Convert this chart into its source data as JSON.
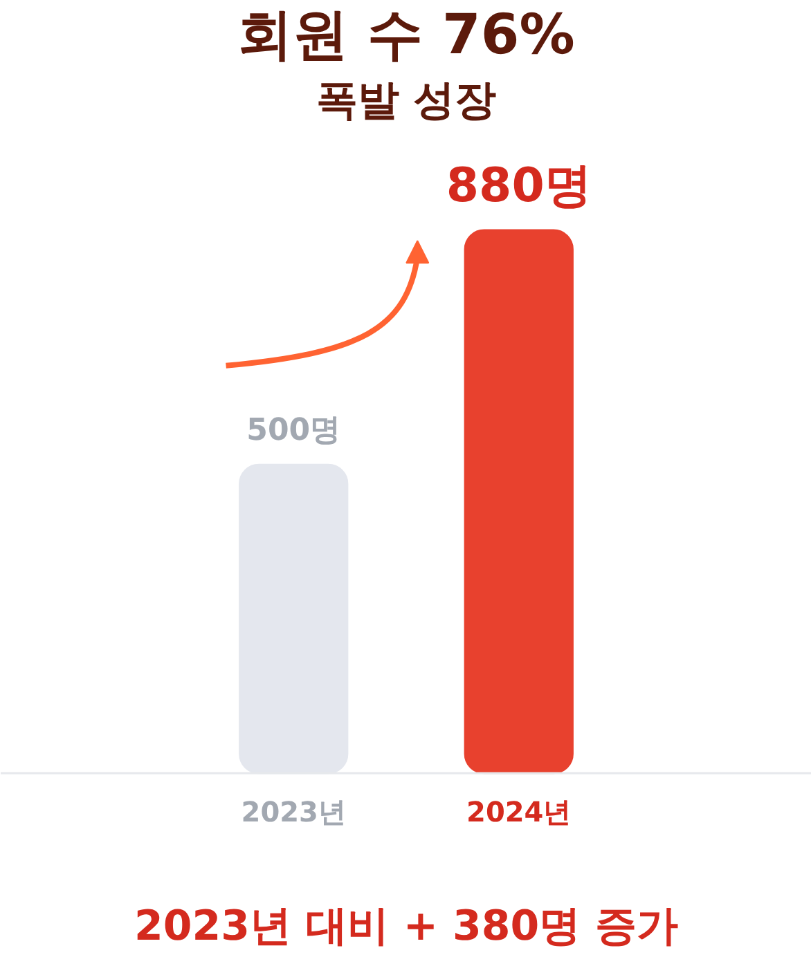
{
  "chart_data": {
    "type": "bar",
    "title": "회원 수 76%",
    "subtitle": "폭발 성장",
    "categories": [
      "2023년",
      "2024년"
    ],
    "values": [
      500,
      880
    ],
    "colors": [
      "#e4e7ee",
      "#e8412e"
    ],
    "value_labels": [
      "500명",
      "880명"
    ],
    "annotations": [
      "2023년 대비 + 380명 증가"
    ],
    "grid": false
  }
}
